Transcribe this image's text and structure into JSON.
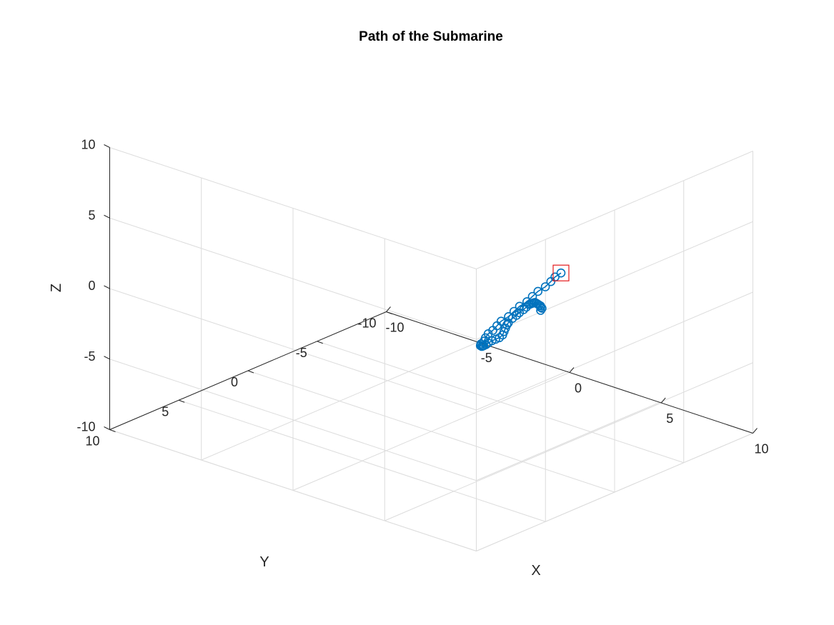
{
  "chart_data": {
    "type": "line3d",
    "title": "Path of the Submarine",
    "xlabel": "X",
    "ylabel": "Y",
    "zlabel": "Z",
    "xlim": [
      -10,
      10
    ],
    "ylim": [
      -10,
      10
    ],
    "zlim": [
      -10,
      10
    ],
    "xticks": [
      -10,
      -5,
      0,
      5,
      10
    ],
    "yticks": [
      -10,
      -5,
      0,
      5,
      10
    ],
    "zticks": [
      -10,
      -5,
      0,
      5,
      10
    ],
    "xtick_labels": [
      "-10",
      "-5",
      "0",
      "5",
      "10"
    ],
    "ytick_labels": [
      "-10",
      "-5",
      "0",
      "5",
      "10"
    ],
    "ztick_labels": [
      "-10",
      "-5",
      "0",
      "5",
      "10"
    ],
    "grid": true,
    "line_color": "#0072bd",
    "end_marker_color": "#e41a1c",
    "marker": "circle",
    "end_marker": "square",
    "series": [
      {
        "x": [
          -1.2,
          -0.9,
          -0.6,
          -0.3,
          0.0,
          0.3,
          0.6,
          0.9,
          1.2,
          1.5,
          1.8,
          2.1,
          2.4,
          2.7,
          3.0,
          3.3,
          3.6,
          3.9,
          4.2,
          4.5,
          4.8,
          5.1,
          5.4,
          5.6,
          5.7,
          5.8,
          5.9,
          6.0,
          6.1,
          6.2,
          6.3,
          6.3,
          6.4,
          6.4,
          6.5,
          6.5,
          6.5,
          6.6,
          6.6,
          6.6,
          6.7,
          6.7,
          6.7,
          6.8,
          6.8,
          6.8,
          6.9,
          6.9,
          6.9,
          7.0
        ],
        "y": [
          -9.5,
          -9.2,
          -8.7,
          -8.3,
          -7.8,
          -7.3,
          -6.8,
          -6.3,
          -5.8,
          -5.4,
          -4.9,
          -4.4,
          -3.9,
          -3.3,
          -2.7,
          -2.0,
          -1.4,
          -0.7,
          0.0,
          0.5,
          1.0,
          1.5,
          2.0,
          2.5,
          2.9,
          3.3,
          3.7,
          4.0,
          4.3,
          4.5,
          4.7,
          4.8,
          4.9,
          4.9,
          4.8,
          4.7,
          4.5,
          4.3,
          4.0,
          3.7,
          3.3,
          2.9,
          2.5,
          2.1,
          1.7,
          1.3,
          0.9,
          0.5,
          0.2,
          -0.1
        ],
        "z": [
          -5.9,
          -5.5,
          -5.1,
          -4.7,
          -4.3,
          -3.9,
          -3.5,
          -3.1,
          -2.8,
          -2.5,
          -2.2,
          -1.9,
          -1.6,
          -1.4,
          -1.2,
          -1.0,
          -0.8,
          -0.6,
          -0.5,
          -0.3,
          -0.2,
          -0.1,
          0.0,
          0.1,
          0.2,
          0.3,
          0.35,
          0.4,
          0.5,
          0.6,
          0.7,
          0.8,
          0.9,
          1.0,
          1.2,
          1.4,
          1.6,
          1.8,
          2.0,
          2.2,
          2.4,
          2.6,
          2.8,
          3.0,
          3.2,
          3.4,
          3.6,
          3.8,
          4.0,
          4.2
        ]
      }
    ]
  }
}
